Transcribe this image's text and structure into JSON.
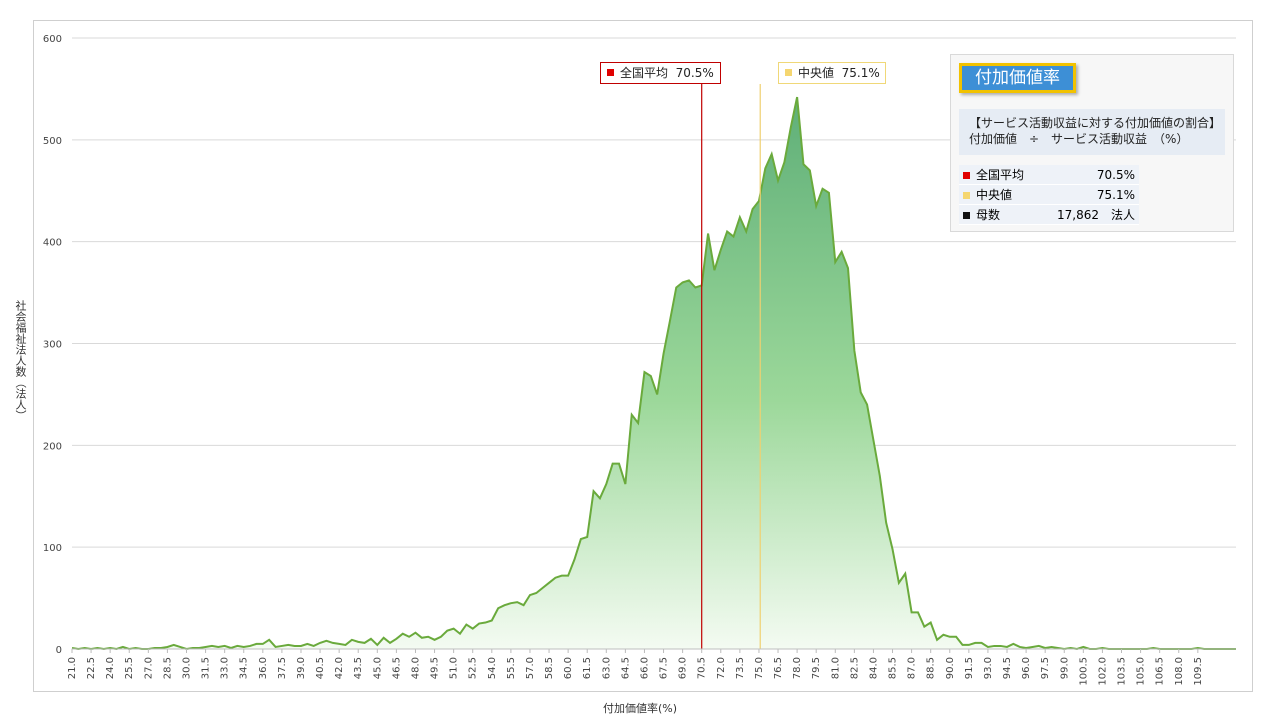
{
  "chart_data": {
    "type": "area",
    "title": "",
    "xlabel": "付加価値率(%)",
    "ylabel": "社会福祉法人数（法人）",
    "ylim": [
      0,
      600
    ],
    "yticks": [
      "0",
      "100",
      "200",
      "300",
      "400",
      "500",
      "600"
    ],
    "grid": true,
    "x_start": 21.0,
    "x_step": 0.5,
    "xtick_labels": [
      "21.0",
      "22.5",
      "24.0",
      "25.5",
      "27.0",
      "28.5",
      "30.0",
      "31.5",
      "33.0",
      "34.5",
      "36.0",
      "37.5",
      "39.0",
      "40.5",
      "42.0",
      "43.5",
      "45.0",
      "46.5",
      "48.0",
      "49.5",
      "51.0",
      "52.5",
      "54.0",
      "55.5",
      "57.0",
      "58.5",
      "60.0",
      "61.5",
      "63.0",
      "64.5",
      "66.0",
      "67.5",
      "69.0",
      "70.5",
      "72.0",
      "73.5",
      "75.0",
      "76.5",
      "78.0",
      "79.5",
      "81.0",
      "82.5",
      "84.0",
      "85.5",
      "87.0",
      "88.5",
      "90.0",
      "91.5",
      "93.0",
      "94.5",
      "96.0",
      "97.5",
      "99.0",
      "100.5",
      "102.0",
      "103.5",
      "105.0",
      "106.5",
      "108.0",
      "109.5"
    ],
    "values": [
      1,
      0,
      1,
      0,
      1,
      0,
      1,
      0,
      2,
      0,
      1,
      0,
      0,
      1,
      1,
      2,
      4,
      2,
      0,
      1,
      1,
      2,
      3,
      2,
      3,
      1,
      3,
      2,
      3,
      5,
      5,
      9,
      2,
      3,
      4,
      3,
      3,
      5,
      3,
      6,
      8,
      6,
      5,
      4,
      9,
      7,
      6,
      10,
      4,
      11,
      6,
      10,
      15,
      12,
      16,
      11,
      12,
      9,
      12,
      18,
      20,
      15,
      24,
      20,
      25,
      26,
      28,
      40,
      43,
      45,
      46,
      43,
      53,
      55,
      60,
      65,
      70,
      72,
      72,
      88,
      108,
      110,
      155,
      148,
      162,
      182,
      182,
      162,
      230,
      222,
      272,
      268,
      250,
      290,
      322,
      355,
      360,
      362,
      355,
      357,
      408,
      372,
      392,
      410,
      405,
      424,
      410,
      432,
      440,
      472,
      486,
      460,
      478,
      512,
      542,
      476,
      470,
      435,
      452,
      448,
      380,
      390,
      374,
      293,
      252,
      240,
      205,
      170,
      124,
      98,
      65,
      74,
      36,
      36,
      22,
      26,
      9,
      14,
      12,
      12,
      4,
      4,
      6,
      6,
      2,
      3,
      3,
      2,
      5,
      2,
      1,
      2,
      3,
      1,
      2,
      1,
      0,
      1,
      0,
      2,
      0,
      0,
      1,
      0,
      0,
      0,
      0,
      0,
      0,
      0,
      1,
      0,
      0,
      0,
      0,
      0,
      0,
      1,
      0,
      0,
      0,
      0,
      0,
      0
    ],
    "series": [
      {
        "name": "",
        "color": "#6aaa3c"
      }
    ],
    "annotations": [
      {
        "label": "全国平均",
        "value_text": "70.5%",
        "x": 70.5,
        "color": "#c00000"
      },
      {
        "label": "中央値",
        "value_text": "75.1%",
        "x": 75.1,
        "color": "#f0d070"
      }
    ]
  },
  "info": {
    "title": "付加価値率",
    "desc_line1": "【サービス活動収益に対する付加価値の割合】",
    "desc_line2": "付加価値　÷　サービス活動収益　（%）",
    "rows": [
      {
        "label": "全国平均",
        "value": "70.5%",
        "color": "#e00000"
      },
      {
        "label": "中央値",
        "value": "75.1%",
        "color": "#f5d670"
      },
      {
        "label": "母数",
        "value": "17,862　法人",
        "color": "#111111"
      }
    ]
  }
}
